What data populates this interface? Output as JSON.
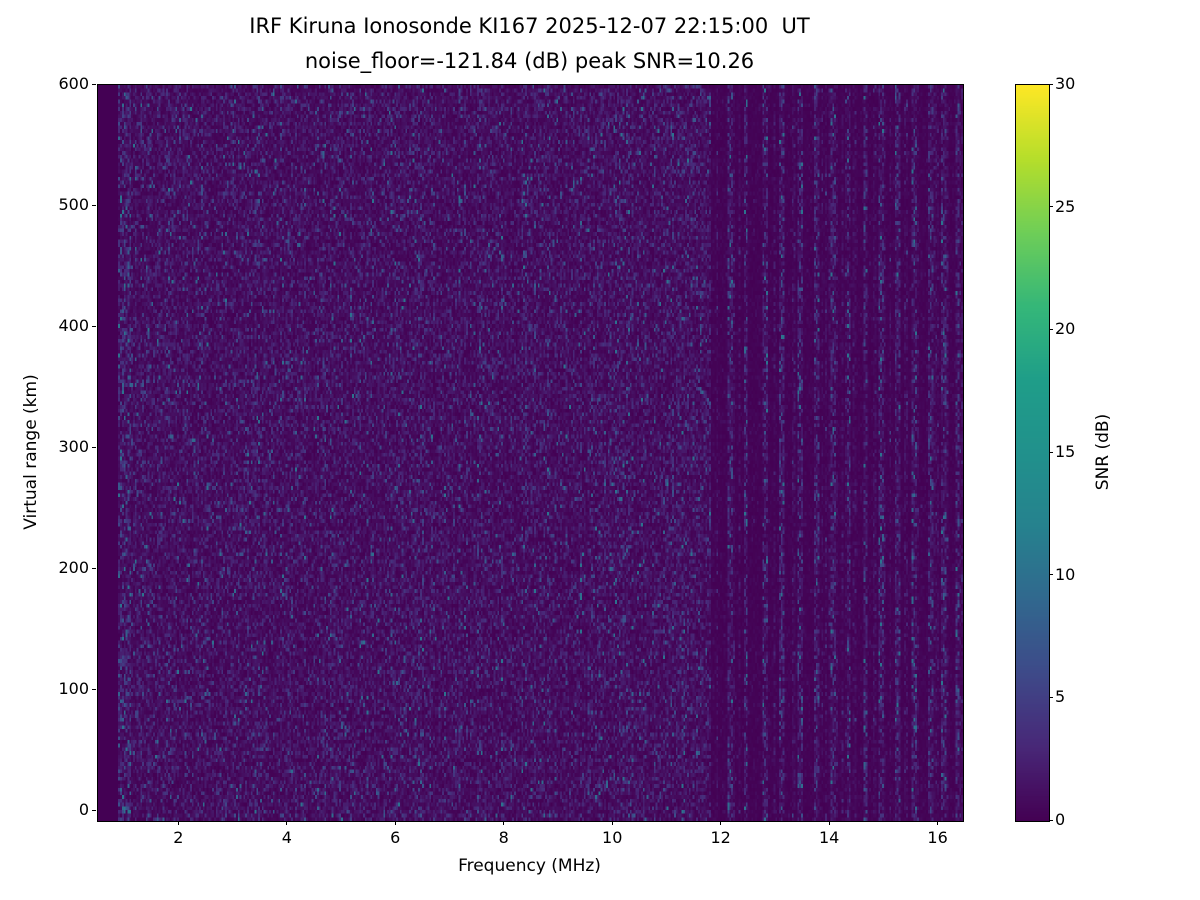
{
  "chart_data": {
    "type": "heatmap",
    "title": "IRF Kiruna Ionosonde KI167 2025-12-07 22:15:00  UT",
    "subtitle": "noise_floor=-121.84 (dB) peak SNR=10.26",
    "station": "IRF Kiruna Ionosonde KI167",
    "timestamp_ut": "2025-12-07 22:15:00",
    "noise_floor_db": -121.84,
    "peak_snr_db": 10.26,
    "xlabel": "Frequency (MHz)",
    "ylabel": "Virtual range (km)",
    "xlim": [
      0.5,
      16.45
    ],
    "ylim": [
      -8,
      600
    ],
    "x_ticks": [
      2,
      4,
      6,
      8,
      10,
      12,
      14,
      16
    ],
    "y_ticks": [
      0,
      100,
      200,
      300,
      400,
      500,
      600
    ],
    "colorbar": {
      "label": "SNR (dB)",
      "min": 0,
      "max": 30,
      "ticks": [
        0,
        5,
        10,
        15,
        20,
        25,
        30
      ],
      "colormap": "viridis",
      "colormap_anchors": [
        "#440154",
        "#482878",
        "#3e4a89",
        "#31688e",
        "#26828e",
        "#21918c",
        "#1f9e89",
        "#35b779",
        "#6ece58",
        "#b5de2b",
        "#fde725"
      ]
    },
    "content": {
      "description": "Background radio-noise ionogram with no ionospheric echo traces. Speckled noise up to ~10 dB SNR between ~0.9 and ~11.8 MHz; quieter band above 11.8 MHz crossed by narrow vertical RFI stripes. Peak SNR 10.26 dB on a 0-30 dB viridis scale.",
      "background_snr_db": 0,
      "mean_noise_snr_db": 1.3,
      "speckle_fraction": 0.02,
      "data_start_mhz": 0.9,
      "quiet_band_start_mhz": 11.8,
      "stripe_freqs_mhz": [
        12.15,
        12.45,
        12.8,
        13.1,
        13.45,
        13.75,
        14.05,
        14.35,
        14.65,
        14.95,
        15.25,
        15.55,
        15.85,
        16.1,
        16.35
      ],
      "grid_cols": 470,
      "grid_rows": 200,
      "seed": 167
    }
  }
}
